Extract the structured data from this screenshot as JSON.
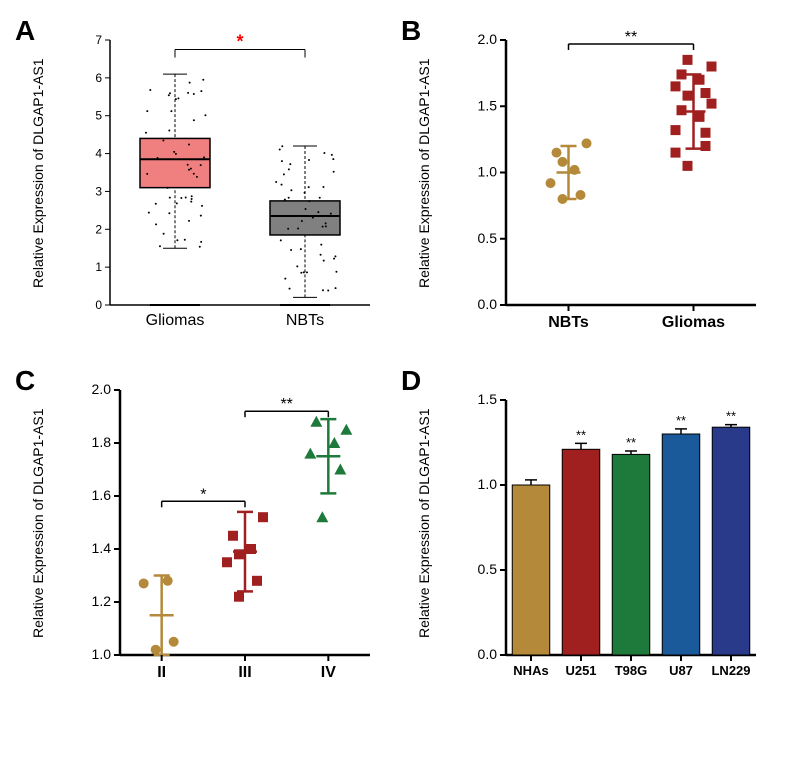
{
  "panelA": {
    "label": "A",
    "ylabel": "Relative Expression of DLGAP1-AS1",
    "type": "boxplot",
    "categories": [
      "Gliomas",
      "NBTs"
    ],
    "boxes": [
      {
        "q1": 3.1,
        "median": 3.85,
        "q3": 4.4,
        "lower_whisker": 1.5,
        "upper_whisker": 6.1,
        "fill": "#f08080"
      },
      {
        "q1": 1.85,
        "median": 2.35,
        "q3": 2.75,
        "lower_whisker": 0.2,
        "upper_whisker": 4.2,
        "fill": "#808080"
      }
    ],
    "ylim": [
      0,
      7
    ],
    "yticks": [
      0,
      1,
      2,
      3,
      4,
      5,
      6,
      7
    ],
    "significance": {
      "label": "*",
      "color": "#ff0000",
      "y": 6.75
    },
    "axis_color": "#000000",
    "label_fontsize": 14,
    "tick_fontsize": 12
  },
  "panelB": {
    "label": "B",
    "ylabel": "Relative Expression of DLGAP1-AS1",
    "type": "scatter_error",
    "categories": [
      "NBTs",
      "Gliomas"
    ],
    "groups": [
      {
        "mean": 1.0,
        "err": 0.2,
        "points": [
          0.8,
          0.83,
          0.92,
          1.02,
          1.15,
          1.22,
          1.08
        ],
        "color": "#b48a3a",
        "marker": "circle"
      },
      {
        "mean": 1.46,
        "err": 0.28,
        "points": [
          1.05,
          1.2,
          1.32,
          1.42,
          1.47,
          1.52,
          1.58,
          1.6,
          1.65,
          1.7,
          1.74,
          1.8,
          1.85,
          1.3,
          1.15
        ],
        "color": "#a02020",
        "marker": "square"
      }
    ],
    "ylim": [
      0.0,
      2.0
    ],
    "yticks": [
      0.0,
      0.5,
      1.0,
      1.5,
      2.0
    ],
    "significance": {
      "label": "**",
      "y": 1.97
    },
    "label_fontsize": 14
  },
  "panelC": {
    "label": "C",
    "ylabel": "Relative Expression of DLGAP1-AS1",
    "type": "scatter_error",
    "categories": [
      "II",
      "III",
      "IV"
    ],
    "groups": [
      {
        "mean": 1.15,
        "err": 0.15,
        "points": [
          1.02,
          1.05,
          1.27,
          1.28
        ],
        "color": "#b48a3a",
        "marker": "circle"
      },
      {
        "mean": 1.39,
        "err": 0.15,
        "points": [
          1.22,
          1.28,
          1.35,
          1.4,
          1.45,
          1.52,
          1.38
        ],
        "color": "#a02020",
        "marker": "square"
      },
      {
        "mean": 1.75,
        "err": 0.14,
        "points": [
          1.52,
          1.7,
          1.76,
          1.8,
          1.88,
          1.85
        ],
        "color": "#1e7a3a",
        "marker": "triangle"
      }
    ],
    "ylim": [
      1.0,
      2.0
    ],
    "yticks": [
      1.0,
      1.2,
      1.4,
      1.6,
      1.8,
      2.0
    ],
    "significance_bars": [
      {
        "from": 0,
        "to": 1,
        "y": 1.58,
        "label": "*"
      },
      {
        "from": 1,
        "to": 2,
        "y": 1.92,
        "label": "**"
      }
    ],
    "label_fontsize": 14
  },
  "panelD": {
    "label": "D",
    "ylabel": "Relative Expression of DLGAP1-AS1",
    "type": "bar",
    "categories": [
      "NHAs",
      "U251",
      "T98G",
      "U87",
      "LN229"
    ],
    "values": [
      1.0,
      1.21,
      1.18,
      1.3,
      1.34
    ],
    "errors": [
      0.03,
      0.035,
      0.02,
      0.03,
      0.015
    ],
    "colors": [
      "#b48a3a",
      "#a02020",
      "#1e7a3a",
      "#1a5a9a",
      "#2a3a8a"
    ],
    "ylim": [
      0.0,
      1.5
    ],
    "yticks": [
      0.0,
      0.5,
      1.0,
      1.5
    ],
    "sig_labels": [
      "",
      "**",
      "**",
      "**",
      "**"
    ],
    "bar_width": 0.75,
    "label_fontsize": 14
  }
}
